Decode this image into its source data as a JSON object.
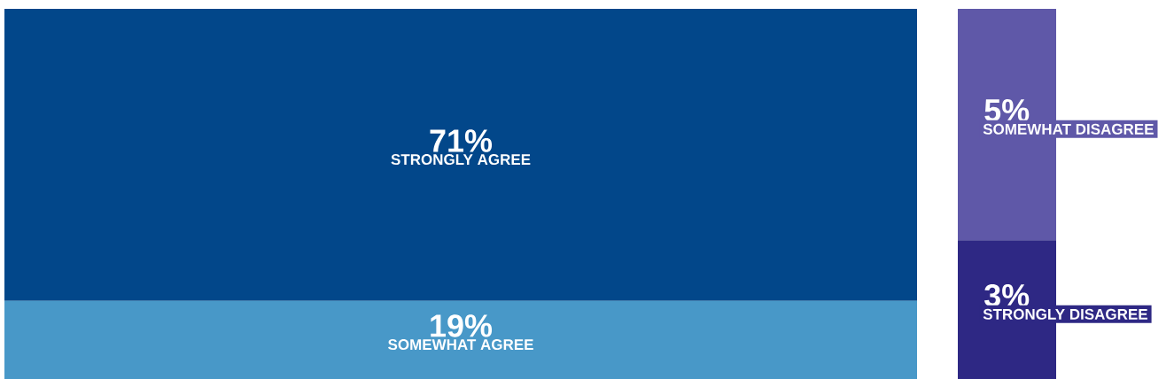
{
  "chart_data": {
    "type": "other",
    "categories": [
      "STRONGLY AGREE",
      "SOMEWHAT AGREE",
      "SOMEWHAT DISAGREE",
      "STRONGLY DISAGREE"
    ],
    "values": [
      71,
      19,
      5,
      3
    ],
    "value_labels": [
      "71%",
      "19%",
      "5%",
      "3%"
    ],
    "colors": [
      "#02478a",
      "#4898c8",
      "#5f58a8",
      "#2e2884"
    ]
  }
}
